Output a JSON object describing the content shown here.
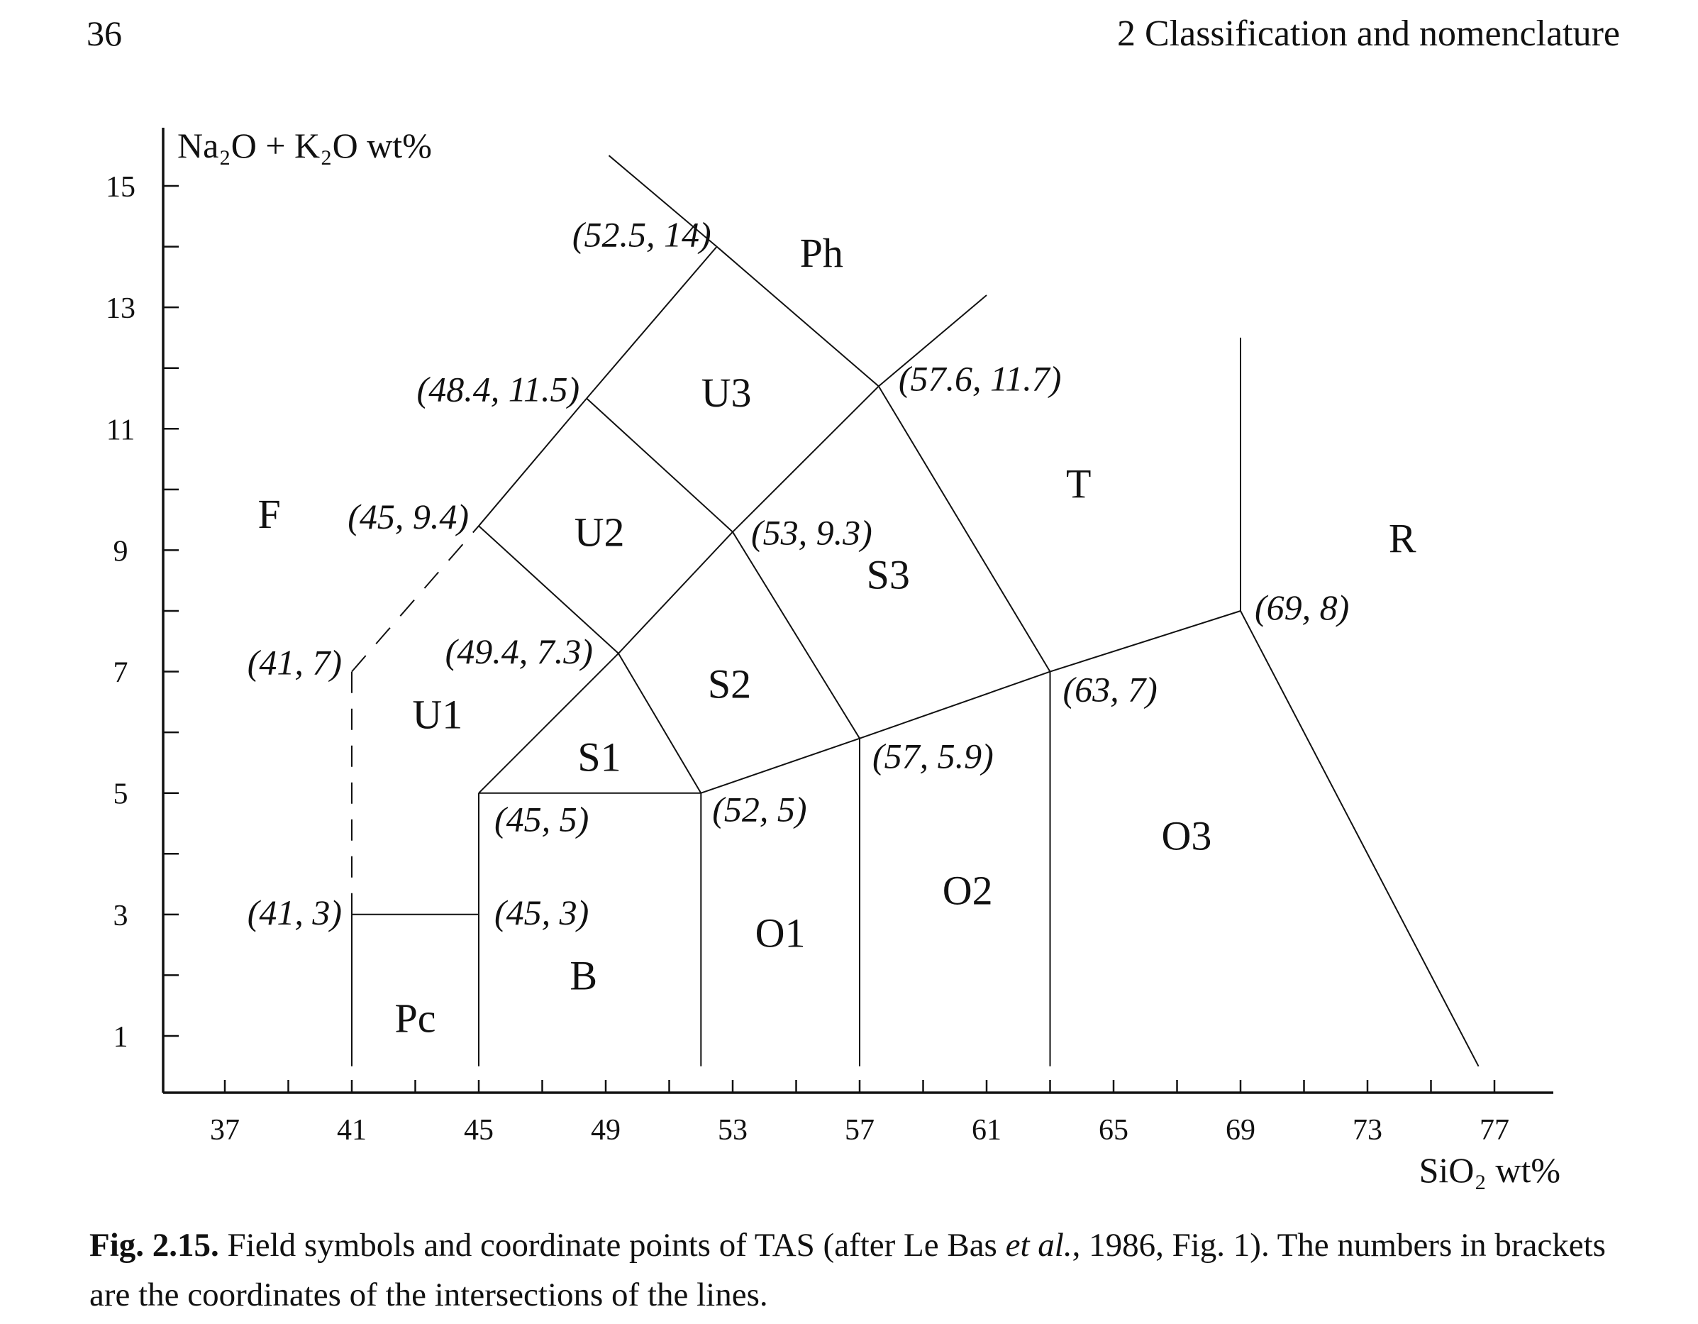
{
  "header": {
    "page_number": "36",
    "running_head": "2  Classification and nomenclature"
  },
  "caption": {
    "label": "Fig. 2.15.",
    "text_a": "Field symbols and coordinate points of TAS (after Le Bas ",
    "text_italic": "et al.",
    "text_b": ", 1986, Fig. 1). The numbers in brackets are the coordinates of the intersections of the lines."
  },
  "chart_data": {
    "type": "diagram",
    "xlabel": "SiO₂ wt%",
    "ylabel": "Na₂O + K₂O wt%",
    "xlim": [
      35,
      79
    ],
    "ylim": [
      0,
      16
    ],
    "x_ticks": [
      37,
      41,
      45,
      49,
      53,
      57,
      61,
      65,
      69,
      73,
      77
    ],
    "y_ticks": [
      1,
      3,
      5,
      7,
      9,
      11,
      13,
      15
    ],
    "lines": [
      {
        "points": [
          [
            41,
            0.5
          ],
          [
            41,
            3
          ]
        ]
      },
      {
        "points": [
          [
            41,
            3
          ],
          [
            45,
            3
          ]
        ]
      },
      {
        "points": [
          [
            41,
            3
          ],
          [
            41,
            7
          ]
        ],
        "dashed": true
      },
      {
        "points": [
          [
            41,
            7
          ],
          [
            45,
            9.4
          ]
        ],
        "dashed": true
      },
      {
        "points": [
          [
            45,
            0.5
          ],
          [
            45,
            5
          ]
        ]
      },
      {
        "points": [
          [
            45,
            5
          ],
          [
            52,
            5
          ]
        ]
      },
      {
        "points": [
          [
            45,
            5
          ],
          [
            49.4,
            7.3
          ]
        ]
      },
      {
        "points": [
          [
            49.4,
            7.3
          ],
          [
            45,
            9.4
          ]
        ]
      },
      {
        "points": [
          [
            45,
            9.4
          ],
          [
            48.4,
            11.5
          ]
        ]
      },
      {
        "points": [
          [
            48.4,
            11.5
          ],
          [
            52.5,
            14
          ]
        ]
      },
      {
        "points": [
          [
            52.5,
            14
          ],
          [
            49.1,
            15.5
          ]
        ]
      },
      {
        "points": [
          [
            52.5,
            14
          ],
          [
            57.6,
            11.7
          ]
        ]
      },
      {
        "points": [
          [
            57.6,
            11.7
          ],
          [
            61,
            13.2
          ]
        ]
      },
      {
        "points": [
          [
            48.4,
            11.5
          ],
          [
            53,
            9.3
          ]
        ]
      },
      {
        "points": [
          [
            53,
            9.3
          ],
          [
            57.6,
            11.7
          ]
        ]
      },
      {
        "points": [
          [
            49.4,
            7.3
          ],
          [
            53,
            9.3
          ]
        ]
      },
      {
        "points": [
          [
            49.4,
            7.3
          ],
          [
            52,
            5
          ]
        ]
      },
      {
        "points": [
          [
            52,
            5
          ],
          [
            52,
            0.5
          ]
        ]
      },
      {
        "points": [
          [
            52,
            5
          ],
          [
            57,
            5.9
          ]
        ]
      },
      {
        "points": [
          [
            53,
            9.3
          ],
          [
            57,
            5.9
          ]
        ]
      },
      {
        "points": [
          [
            57,
            5.9
          ],
          [
            57,
            0.5
          ]
        ]
      },
      {
        "points": [
          [
            57,
            5.9
          ],
          [
            63,
            7
          ]
        ]
      },
      {
        "points": [
          [
            57.6,
            11.7
          ],
          [
            63,
            7
          ]
        ]
      },
      {
        "points": [
          [
            63,
            7
          ],
          [
            63,
            0.5
          ]
        ]
      },
      {
        "points": [
          [
            63,
            7
          ],
          [
            69,
            8
          ]
        ]
      },
      {
        "points": [
          [
            69,
            8
          ],
          [
            69,
            12.5
          ]
        ]
      },
      {
        "points": [
          [
            69,
            8
          ],
          [
            76.5,
            0.5
          ]
        ]
      }
    ],
    "field_labels": [
      {
        "text": "Ph",
        "x": 55.8,
        "y": 13.9
      },
      {
        "text": "U3",
        "x": 52.8,
        "y": 11.6
      },
      {
        "text": "F",
        "x": 38.4,
        "y": 9.6
      },
      {
        "text": "U2",
        "x": 48.8,
        "y": 9.3
      },
      {
        "text": "T",
        "x": 63.9,
        "y": 10.1
      },
      {
        "text": "R",
        "x": 74.1,
        "y": 9.2
      },
      {
        "text": "S3",
        "x": 57.9,
        "y": 8.6
      },
      {
        "text": "S2",
        "x": 52.9,
        "y": 6.8
      },
      {
        "text": "U1",
        "x": 43.7,
        "y": 6.3
      },
      {
        "text": "S1",
        "x": 48.8,
        "y": 5.6
      },
      {
        "text": "O3",
        "x": 67.3,
        "y": 4.3
      },
      {
        "text": "O2",
        "x": 60.4,
        "y": 3.4
      },
      {
        "text": "O1",
        "x": 54.5,
        "y": 2.7
      },
      {
        "text": "B",
        "x": 48.3,
        "y": 2.0
      },
      {
        "text": "Pc",
        "x": 43.0,
        "y": 1.3
      }
    ],
    "coordinate_labels": [
      {
        "text": "(52.5, 14)",
        "x": 52.5,
        "y": 14,
        "dx": -8,
        "dy": 0,
        "anchor": "end"
      },
      {
        "text": "(48.4, 11.5)",
        "x": 48.4,
        "y": 11.5,
        "dx": -10,
        "dy": 4,
        "anchor": "end"
      },
      {
        "text": "(57.6, 11.7)",
        "x": 57.6,
        "y": 11.7,
        "dx": 28,
        "dy": 6,
        "anchor": "start"
      },
      {
        "text": "(45, 9.4)",
        "x": 45,
        "y": 9.4,
        "dx": -14,
        "dy": 4,
        "anchor": "end"
      },
      {
        "text": "(53, 9.3)",
        "x": 53,
        "y": 9.3,
        "dx": 26,
        "dy": 18,
        "anchor": "start"
      },
      {
        "text": "(41, 7)",
        "x": 41,
        "y": 7,
        "dx": -14,
        "dy": 4,
        "anchor": "end"
      },
      {
        "text": "(49.4, 7.3)",
        "x": 49.4,
        "y": 7.3,
        "dx": -36,
        "dy": 14,
        "anchor": "end"
      },
      {
        "text": "(69, 8)",
        "x": 69,
        "y": 8,
        "dx": 20,
        "dy": 12,
        "anchor": "start"
      },
      {
        "text": "(63, 7)",
        "x": 63,
        "y": 7,
        "dx": 18,
        "dy": 42,
        "anchor": "start"
      },
      {
        "text": "(57, 5.9)",
        "x": 57,
        "y": 5.9,
        "dx": 18,
        "dy": 42,
        "anchor": "start"
      },
      {
        "text": "(45, 5)",
        "x": 45,
        "y": 5,
        "dx": 22,
        "dy": 54,
        "anchor": "start"
      },
      {
        "text": "(52, 5)",
        "x": 52,
        "y": 5,
        "dx": 16,
        "dy": 40,
        "anchor": "start"
      },
      {
        "text": "(41, 3)",
        "x": 41,
        "y": 3,
        "dx": -14,
        "dy": 14,
        "anchor": "end"
      },
      {
        "text": "(45, 3)",
        "x": 45,
        "y": 3,
        "dx": 22,
        "dy": 14,
        "anchor": "start"
      }
    ]
  }
}
